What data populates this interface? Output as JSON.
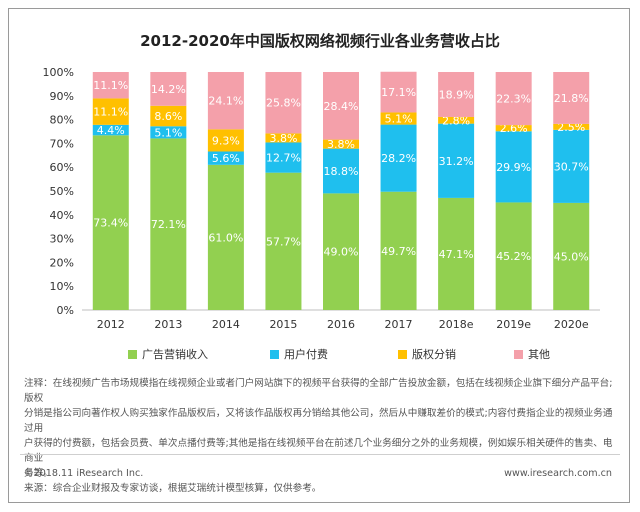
{
  "chart_data": {
    "type": "bar",
    "stacked": true,
    "title": "2012-2020年中国版权网络视频行业各业务营收占比",
    "categories": [
      "2012",
      "2013",
      "2014",
      "2015",
      "2016",
      "2017",
      "2018e",
      "2019e",
      "2020e"
    ],
    "yticks": [
      "0%",
      "10%",
      "20%",
      "30%",
      "40%",
      "50%",
      "60%",
      "70%",
      "80%",
      "90%",
      "100%"
    ],
    "ylim": [
      0,
      100
    ],
    "legend_position": "bottom",
    "series": [
      {
        "name": "广告营销收入",
        "color": "#92d050",
        "values": [
          73.4,
          72.1,
          61.0,
          57.7,
          49.0,
          49.7,
          47.1,
          45.2,
          45.0
        ],
        "labels": [
          "73.4%",
          "72.1%",
          "61.0%",
          "57.7%",
          "49.0%",
          "49.7%",
          "47.1%",
          "45.2%",
          "45.0%"
        ]
      },
      {
        "name": "用户付费",
        "color": "#1fbfee",
        "values": [
          4.4,
          5.1,
          5.6,
          12.7,
          18.8,
          28.2,
          31.2,
          29.9,
          30.7
        ],
        "labels": [
          "4.4%",
          "5.1%",
          "5.6%",
          "12.7%",
          "18.8%",
          "28.2%",
          "31.2%",
          "29.9%",
          "30.7%"
        ]
      },
      {
        "name": "版权分销",
        "color": "#ffc000",
        "values": [
          11.1,
          8.6,
          9.3,
          3.8,
          3.8,
          5.1,
          2.8,
          2.6,
          2.5
        ],
        "labels": [
          "11.1%",
          "8.6%",
          "9.3%",
          "3.8%",
          "3.8%",
          "5.1%",
          "2.8%",
          "2.6%",
          "2.5%"
        ]
      },
      {
        "name": "其他",
        "color": "#f4a0aa",
        "values": [
          11.1,
          14.2,
          24.1,
          25.8,
          28.4,
          17.1,
          18.9,
          22.3,
          21.8
        ],
        "labels": [
          "11.1%",
          "14.2%",
          "24.1%",
          "25.8%",
          "28.4%",
          "17.1%",
          "18.9%",
          "22.3%",
          "21.8%"
        ]
      }
    ]
  },
  "notes": {
    "line1": "注释：在线视频广告市场规模指在线视频企业或者门户网站旗下的视频平台获得的全部广告投放金额，包括在线视频企业旗下细分产品平台;版权",
    "line2": "分销是指公司向著作权人购买独家作品版权后，又将该作品版权再分销给其他公司，然后从中赚取差价的模式;内容付费指企业的视频业务通过用",
    "line3": "户获得的付费额，包括会员费、单次点播付费等;其他是指在线视频平台在前述几个业务细分之外的业务规模，例如娱乐相关硬件的售卖、电商业",
    "line4": "务等。",
    "source": "来源：综合企业财报及专家访谈，根据艾瑞统计模型核算，仅供参考。"
  },
  "footer": {
    "copyright": "©2018.11 iResearch Inc.",
    "website": "www.iresearch.com.cn"
  }
}
